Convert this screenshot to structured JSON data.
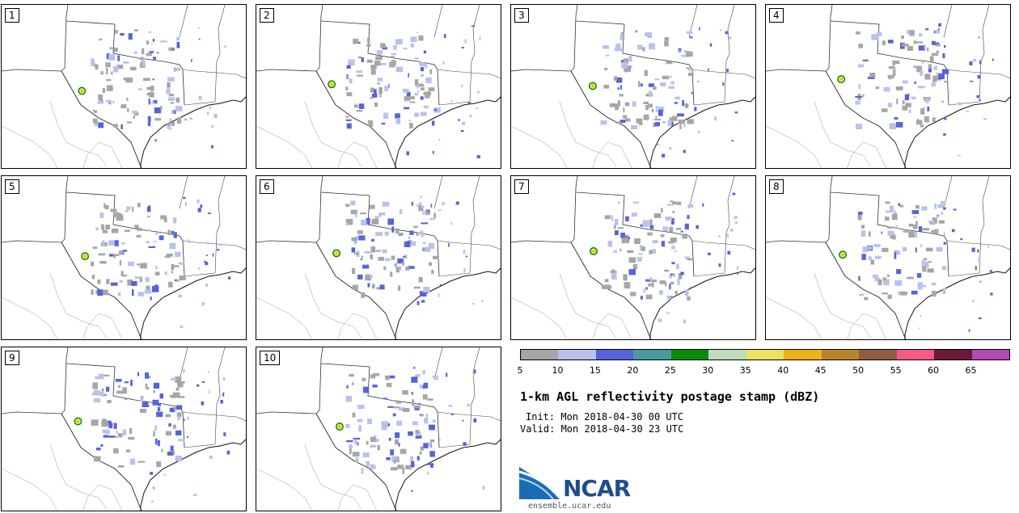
{
  "panels": [
    {
      "label": "1"
    },
    {
      "label": "2"
    },
    {
      "label": "3"
    },
    {
      "label": "4"
    },
    {
      "label": "5"
    },
    {
      "label": "6"
    },
    {
      "label": "7"
    },
    {
      "label": "8"
    },
    {
      "label": "9"
    },
    {
      "label": "10"
    }
  ],
  "colorbar": {
    "colors": [
      "#a6a6a6",
      "#b8c2ec",
      "#5663d9",
      "#4a9aa0",
      "#0a8a0a",
      "#bcdcbc",
      "#ece262",
      "#eeb11a",
      "#b9832c",
      "#8d5f40",
      "#f45a84",
      "#6b1a3a",
      "#b54ab0"
    ],
    "ticks": [
      "5",
      "10",
      "15",
      "20",
      "25",
      "30",
      "35",
      "40",
      "45",
      "50",
      "55",
      "60",
      "65"
    ]
  },
  "title": "1-km AGL reflectivity postage stamp (dBZ)",
  "init": "Init: Mon 2018-04-30 00 UTC",
  "valid": "Valid: Mon 2018-04-30 23 UTC",
  "logo": {
    "text": "NCAR",
    "site": "ensemble.ucar.edu"
  }
}
